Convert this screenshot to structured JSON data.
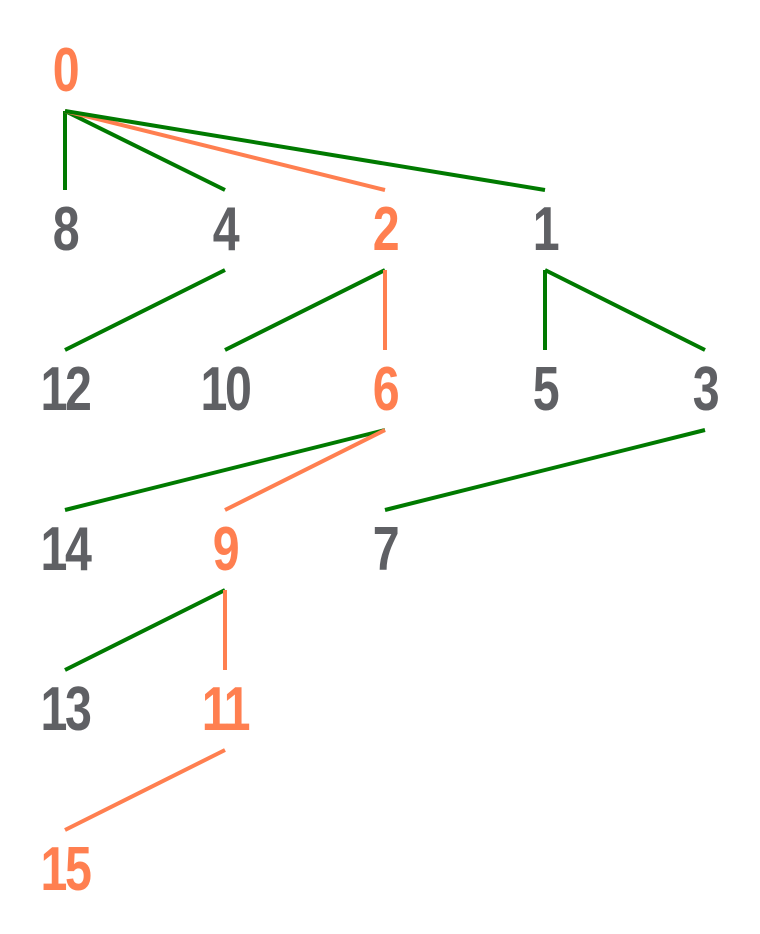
{
  "colors": {
    "highlight": "#ff7f50",
    "node_default": "#5f6064",
    "edge_default": "#007a00",
    "background": "#ffffff"
  },
  "nodes": [
    {
      "id": "n0",
      "label": "0",
      "highlighted": true
    },
    {
      "id": "n8",
      "label": "8",
      "highlighted": false
    },
    {
      "id": "n4",
      "label": "4",
      "highlighted": false
    },
    {
      "id": "n2",
      "label": "2",
      "highlighted": true
    },
    {
      "id": "n1",
      "label": "1",
      "highlighted": false
    },
    {
      "id": "n12",
      "label": "12",
      "highlighted": false
    },
    {
      "id": "n10",
      "label": "10",
      "highlighted": false
    },
    {
      "id": "n6",
      "label": "6",
      "highlighted": true
    },
    {
      "id": "n5",
      "label": "5",
      "highlighted": false
    },
    {
      "id": "n3",
      "label": "3",
      "highlighted": false
    },
    {
      "id": "n14",
      "label": "14",
      "highlighted": false
    },
    {
      "id": "n9",
      "label": "9",
      "highlighted": true
    },
    {
      "id": "n7",
      "label": "7",
      "highlighted": false
    },
    {
      "id": "n13",
      "label": "13",
      "highlighted": false
    },
    {
      "id": "n11",
      "label": "11",
      "highlighted": true
    },
    {
      "id": "n15",
      "label": "15",
      "highlighted": true
    }
  ],
  "edges": [
    {
      "from": "n0",
      "to": "n8",
      "highlighted": false
    },
    {
      "from": "n0",
      "to": "n4",
      "highlighted": false
    },
    {
      "from": "n0",
      "to": "n2",
      "highlighted": true
    },
    {
      "from": "n0",
      "to": "n1",
      "highlighted": false
    },
    {
      "from": "n4",
      "to": "n12",
      "highlighted": false
    },
    {
      "from": "n2",
      "to": "n10",
      "highlighted": false
    },
    {
      "from": "n2",
      "to": "n6",
      "highlighted": true
    },
    {
      "from": "n1",
      "to": "n5",
      "highlighted": false
    },
    {
      "from": "n1",
      "to": "n3",
      "highlighted": false
    },
    {
      "from": "n6",
      "to": "n14",
      "highlighted": false
    },
    {
      "from": "n6",
      "to": "n9",
      "highlighted": true
    },
    {
      "from": "n3",
      "to": "n7",
      "highlighted": false
    },
    {
      "from": "n9",
      "to": "n13",
      "highlighted": false
    },
    {
      "from": "n9",
      "to": "n11",
      "highlighted": true
    },
    {
      "from": "n11",
      "to": "n15",
      "highlighted": true
    }
  ]
}
